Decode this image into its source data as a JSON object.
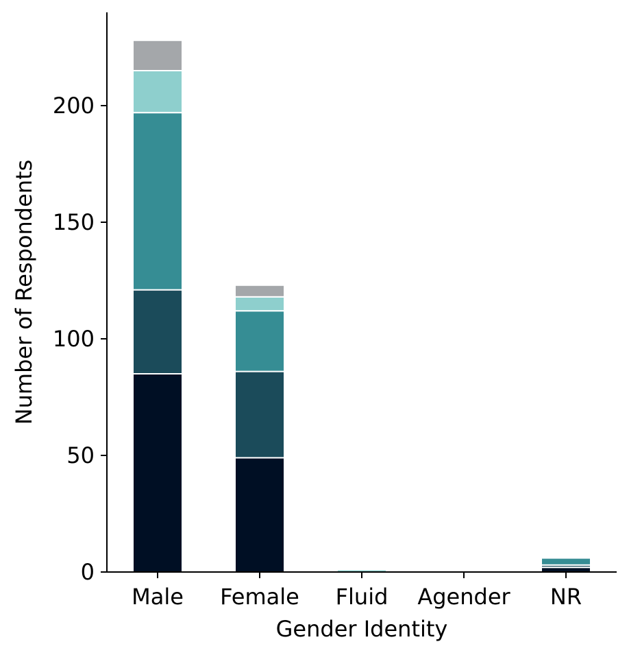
{
  "chart_data": {
    "type": "bar",
    "stacked": true,
    "categories": [
      "Male",
      "Female",
      "Fluid",
      "Agender",
      "NR"
    ],
    "series": [
      {
        "values": [
          85,
          49,
          0,
          0,
          2
        ],
        "color": "#000f24"
      },
      {
        "values": [
          36,
          37,
          0,
          0,
          1
        ],
        "color": "#1b4b5a"
      },
      {
        "values": [
          76,
          26,
          0,
          0,
          3
        ],
        "color": "#368d94"
      },
      {
        "values": [
          18,
          6,
          1,
          0,
          0
        ],
        "color": "#8ecfcd"
      },
      {
        "values": [
          13,
          5,
          0,
          0,
          0
        ],
        "color": "#a4a7aa"
      }
    ],
    "title": "",
    "xlabel": "Gender Identity",
    "ylabel": "Number of Respondents",
    "ylim": [
      0,
      240
    ],
    "yticks": [
      0,
      50,
      100,
      150,
      200
    ],
    "grid": false,
    "legend": "none"
  }
}
